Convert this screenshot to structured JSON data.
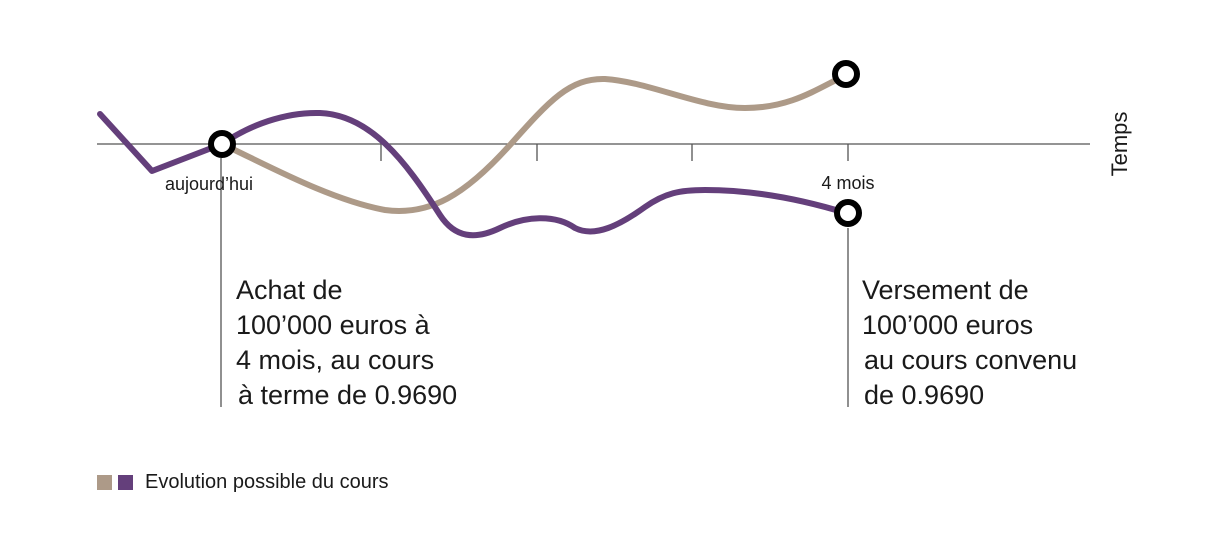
{
  "axis": {
    "label": "Temps",
    "tick_labels": [
      "aujourd’hui",
      "4 mois"
    ]
  },
  "notes": {
    "left": [
      "Achat de",
      "100’000 euros à",
      "4 mois, au cours",
      "à terme de 0.9690"
    ],
    "right": [
      "Versement de",
      "100’000 euros",
      "au cours convenu",
      "de 0.9690"
    ]
  },
  "legend": {
    "label": "Evolution possible du cours"
  },
  "colors": {
    "series_tan": "#ad9a88",
    "series_purple": "#643f7b",
    "axis": "#555555",
    "marker_stroke": "#000000"
  }
}
